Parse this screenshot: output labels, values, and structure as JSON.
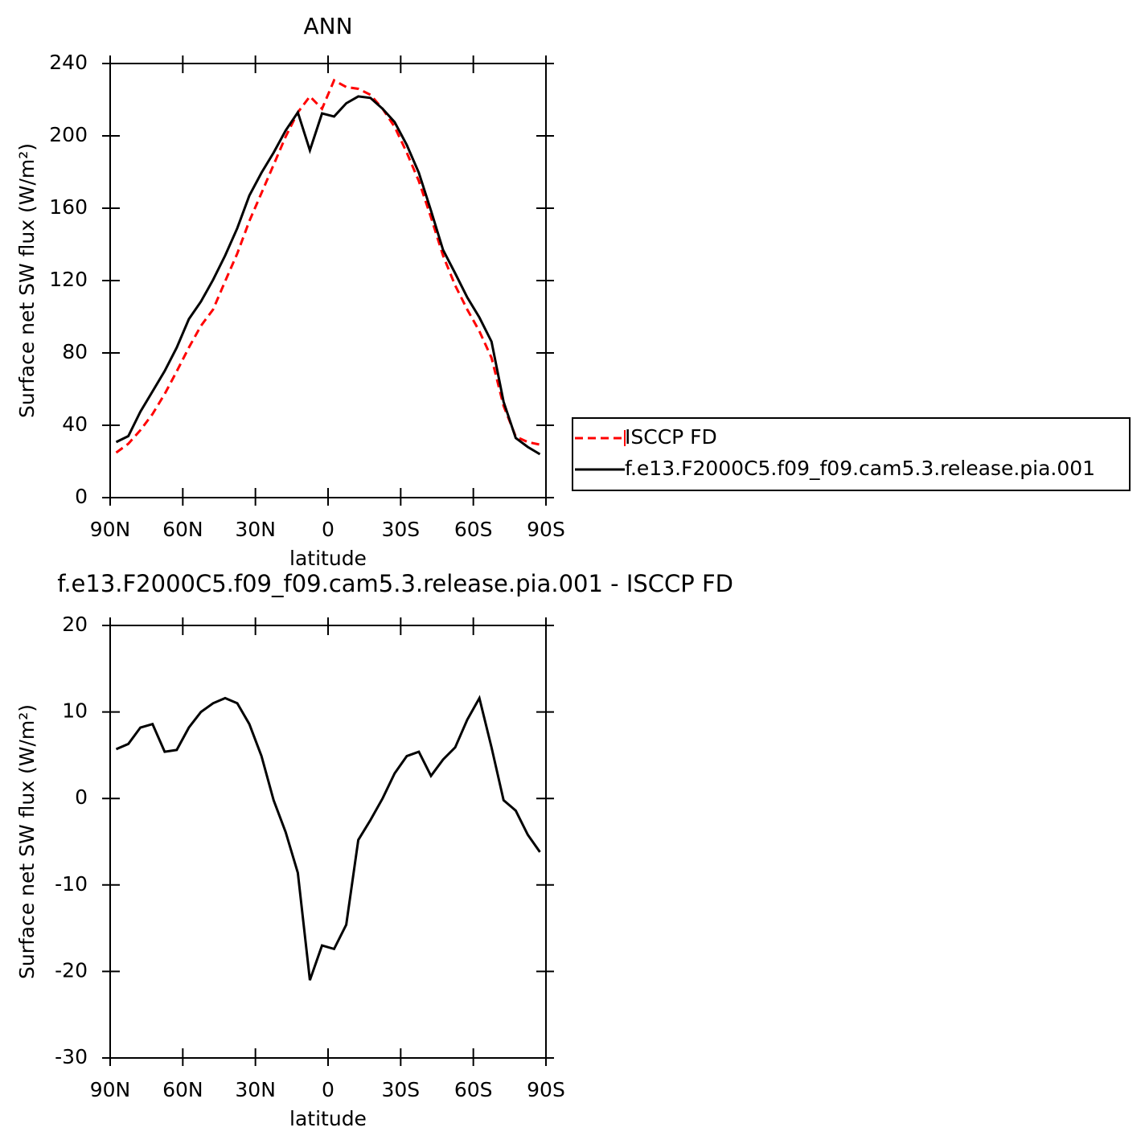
{
  "chart_data": [
    {
      "type": "line",
      "title": "ANN",
      "x_label": "latitude",
      "y_label": "Surface net SW flux (W/m²)",
      "x": [
        87.5,
        82.5,
        77.5,
        72.5,
        67.5,
        62.5,
        57.5,
        52.5,
        47.5,
        42.5,
        37.5,
        32.5,
        27.5,
        22.5,
        17.5,
        12.5,
        7.5,
        2.5,
        -2.5,
        -7.5,
        -12.5,
        -17.5,
        -22.5,
        -27.5,
        -32.5,
        -37.5,
        -42.5,
        -47.5,
        -52.5,
        -57.5,
        -62.5,
        -67.5,
        -72.5,
        -77.5,
        -82.5,
        -87.5
      ],
      "xlim": [
        90,
        -90
      ],
      "xticks": [
        {
          "value": 90,
          "label": "90N"
        },
        {
          "value": 60,
          "label": "60N"
        },
        {
          "value": 30,
          "label": "30N"
        },
        0,
        {
          "value": -30,
          "label": "30S"
        },
        {
          "value": -60,
          "label": "60S"
        },
        {
          "value": -90,
          "label": "90S"
        }
      ],
      "ylim": [
        0,
        240
      ],
      "yticks": [
        0,
        40,
        80,
        120,
        160,
        200,
        240
      ],
      "legend": "right",
      "series": [
        {
          "name": "ISCCP FD",
          "color": "#ff0000",
          "dashed": true,
          "values": [
            24.9,
            29.8,
            37.3,
            46.2,
            57.3,
            69.8,
            83,
            95,
            104,
            119.6,
            135,
            152.9,
            168.4,
            184,
            199.6,
            213,
            221.8,
            215,
            230.7,
            227,
            226,
            222.7,
            215,
            205,
            190.7,
            175,
            155,
            133.8,
            117.3,
            104,
            92,
            77.3,
            50.7,
            33.8,
            30.7,
            29.3
          ]
        },
        {
          "name": "f.e13.F2000C5.f09_f09.cam5.3.release.pia.001",
          "color": "#000000",
          "dashed": false,
          "values": [
            30.7,
            34,
            47.5,
            58.7,
            70,
            83,
            98.7,
            108.4,
            120.4,
            133.8,
            149,
            167,
            179.6,
            190.7,
            203,
            213,
            192,
            212.4,
            210.7,
            218,
            221.8,
            221,
            215,
            207.6,
            195,
            179.6,
            158.7,
            137,
            124,
            110.7,
            99.6,
            86.2,
            53,
            33,
            28,
            24
          ]
        }
      ]
    },
    {
      "type": "line",
      "title": "f.e13.F2000C5.f09_f09.cam5.3.release.pia.001 - ISCCP FD",
      "x_label": "latitude",
      "y_label": "Surface net SW flux (W/m²)",
      "x": [
        87.5,
        82.5,
        77.5,
        72.5,
        67.5,
        62.5,
        57.5,
        52.5,
        47.5,
        42.5,
        37.5,
        32.5,
        27.5,
        22.5,
        17.5,
        12.5,
        7.5,
        2.5,
        -2.5,
        -7.5,
        -12.5,
        -17.5,
        -22.5,
        -27.5,
        -32.5,
        -37.5,
        -42.5,
        -47.5,
        -52.5,
        -57.5,
        -62.5,
        -67.5,
        -72.5,
        -77.5,
        -82.5,
        -87.5
      ],
      "xlim": [
        90,
        -90
      ],
      "xticks": [
        {
          "value": 90,
          "label": "90N"
        },
        {
          "value": 60,
          "label": "60N"
        },
        {
          "value": 30,
          "label": "30N"
        },
        0,
        {
          "value": -30,
          "label": "30S"
        },
        {
          "value": -60,
          "label": "60S"
        },
        {
          "value": -90,
          "label": "90S"
        }
      ],
      "ylim": [
        -30,
        20
      ],
      "yticks": [
        -30,
        -20,
        -10,
        0,
        10,
        20
      ],
      "color": "#000000",
      "values": [
        5.7,
        6.3,
        8.2,
        8.6,
        5.4,
        5.6,
        8.2,
        10,
        11,
        11.6,
        11,
        8.6,
        4.9,
        -0.2,
        -3.9,
        -8.6,
        -21,
        -17,
        -17.4,
        -14.6,
        -4.8,
        -2.5,
        0,
        2.9,
        4.9,
        5.4,
        2.6,
        4.5,
        5.9,
        9.1,
        11.6,
        5.9,
        -0.2,
        -1.4,
        -4.2,
        -6.2
      ]
    }
  ]
}
